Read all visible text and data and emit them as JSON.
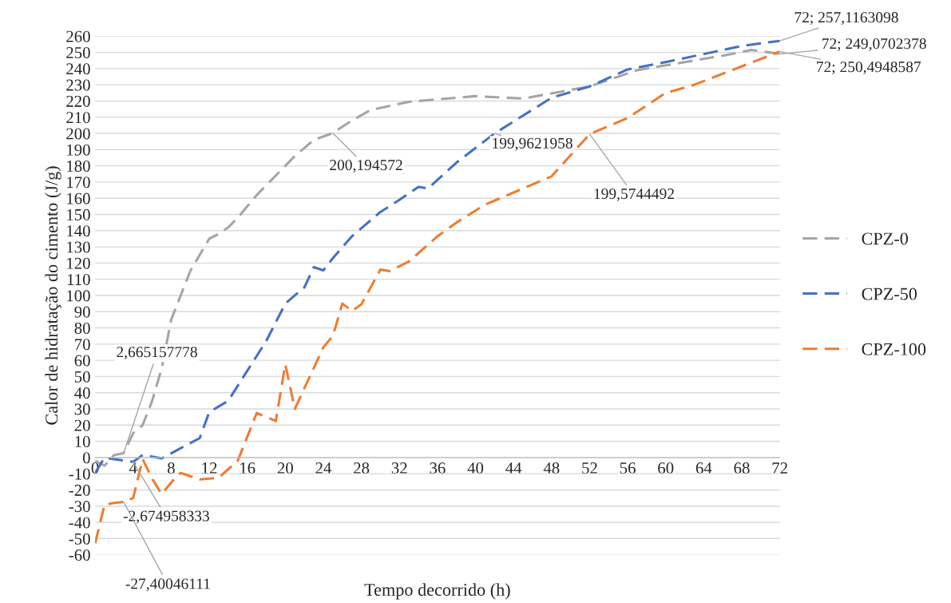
{
  "chart_data": {
    "type": "line",
    "xlabel": "Tempo decorrido (h)",
    "ylabel": "Calor de hidratação do cimento (J/g)",
    "xlim": [
      0,
      72
    ],
    "ylim": [
      -60,
      260
    ],
    "xticks": [
      0,
      4,
      8,
      12,
      16,
      20,
      24,
      28,
      32,
      36,
      40,
      44,
      48,
      52,
      56,
      60,
      64,
      68,
      72
    ],
    "yticks": [
      -60,
      -50,
      -40,
      -30,
      -20,
      -10,
      0,
      10,
      20,
      30,
      40,
      50,
      60,
      70,
      80,
      90,
      100,
      110,
      120,
      130,
      140,
      150,
      160,
      170,
      180,
      190,
      200,
      210,
      220,
      230,
      240,
      250,
      260
    ],
    "grid": "y",
    "legend": "right",
    "line_style": "dashed",
    "marker": "none",
    "series": [
      {
        "name": "CPZ-0",
        "color": "#a5a5a5",
        "x": [
          0,
          1,
          2,
          3,
          4,
          5,
          6,
          7,
          8,
          9,
          10,
          11,
          12,
          13,
          14,
          15,
          16,
          17,
          18,
          19,
          20,
          21,
          22,
          23,
          25,
          27,
          29,
          33,
          40,
          45,
          52,
          57,
          62,
          66,
          69,
          72
        ],
        "values": [
          -2,
          -5,
          1.5,
          2.665157778,
          15,
          20,
          35,
          55,
          85,
          100,
          115,
          125,
          135,
          138,
          142,
          148,
          155,
          162,
          168,
          174,
          180,
          186,
          191,
          196,
          200.194572,
          208,
          214.5,
          219.5,
          223,
          221.5,
          229,
          239,
          244,
          248,
          251.5,
          249.0702378
        ]
      },
      {
        "name": "CPZ-50",
        "color": "#4472c4",
        "x": [
          0,
          1,
          2,
          4,
          5,
          7,
          11,
          12,
          14,
          18,
          20,
          21,
          22,
          23,
          24,
          25,
          27,
          30,
          32,
          34,
          35,
          38,
          42,
          48,
          52,
          56,
          60,
          64,
          68,
          72
        ],
        "values": [
          -9.5,
          0,
          -1,
          -2.674958333,
          1.5,
          -0.5,
          12,
          28,
          35,
          72,
          95,
          100,
          105,
          117.5,
          115.5,
          123,
          136.5,
          151.5,
          159,
          167,
          166,
          182,
          199.9621958,
          222,
          229,
          239.5,
          244,
          249,
          254,
          257.1163098
        ]
      },
      {
        "name": "CPZ-100",
        "color": "#ed7d31",
        "x": [
          0,
          1,
          2,
          3,
          4,
          5,
          6,
          7,
          8.5,
          9,
          11,
          13,
          15,
          17,
          19,
          20,
          21,
          24,
          25,
          26,
          27,
          28,
          30,
          31,
          33,
          36,
          38,
          41,
          48,
          52,
          56,
          60,
          63,
          72
        ],
        "values": [
          -53,
          -29,
          -28,
          -27.40046111,
          -25,
          -1,
          -13,
          -22.5,
          -12,
          -9.5,
          -13.5,
          -12.5,
          -2,
          27.5,
          22.5,
          57.5,
          30,
          68,
          75,
          95,
          90.5,
          94.5,
          116,
          115,
          121,
          136.5,
          145,
          156,
          173.5,
          199.5744492,
          209.5,
          225,
          230,
          250.4948587
        ]
      }
    ],
    "annotations": [
      {
        "text": "2,665157778",
        "x": 3,
        "y": 2.665157778
      },
      {
        "text": "-2,674958333",
        "x": 4,
        "y": -2.674958333
      },
      {
        "text": "-27,40046111",
        "x": 3,
        "y": -27.40046111
      },
      {
        "text": "200,194572",
        "x": 25,
        "y": 200.194572
      },
      {
        "text": "199,9621958",
        "x": 42,
        "y": 199.9621958
      },
      {
        "text": "199,5744492",
        "x": 52,
        "y": 199.5744492
      },
      {
        "text": "72; 257,1163098",
        "x": 72,
        "y": 257.1163098
      },
      {
        "text": "72; 249,0702378",
        "x": 72,
        "y": 249.0702378
      },
      {
        "text": "72; 250,4948587",
        "x": 72,
        "y": 250.4948587
      }
    ]
  }
}
